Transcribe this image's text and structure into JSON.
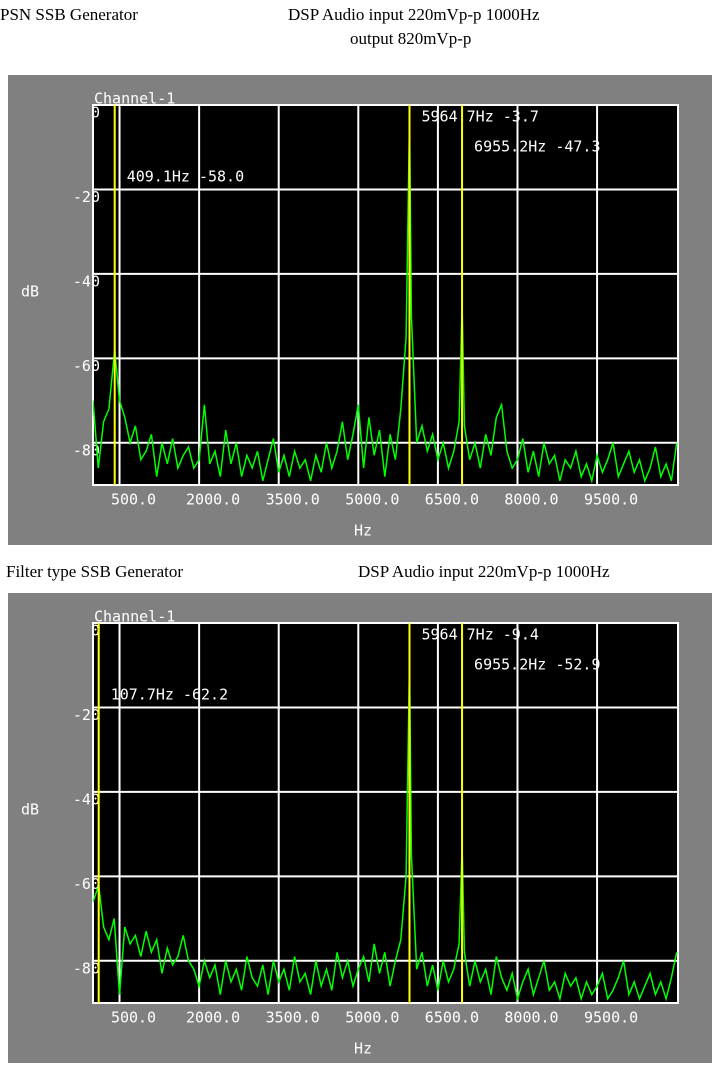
{
  "chart_data": [
    {
      "type": "line",
      "title": "PSN SSB Generator",
      "notes": [
        "DSP Audio input   220mVp-p  1000Hz",
        "output    820mVp-p"
      ],
      "channel": "Channel-1",
      "xlabel": "Hz",
      "ylabel": "dB",
      "color": "#00ff00",
      "grid": true,
      "xlim": [
        0,
        11025
      ],
      "ylim": [
        -90,
        0
      ],
      "xticks": [
        {
          "value": 500,
          "label": "500.0"
        },
        {
          "value": 2000,
          "label": "2000.0"
        },
        {
          "value": 3500,
          "label": "3500.0"
        },
        {
          "value": 5000,
          "label": "5000.0"
        },
        {
          "value": 6500,
          "label": "6500.0"
        },
        {
          "value": 8000,
          "label": "8000.0"
        },
        {
          "value": 9500,
          "label": "9500.0"
        }
      ],
      "yticks": [
        0,
        -20,
        -40,
        -60,
        -80
      ],
      "markers": [
        {
          "x": 409.1,
          "label": "409.1Hz -58.0"
        },
        {
          "x": 5964.7,
          "label": "5964.7Hz -3.7"
        },
        {
          "x": 6955.2,
          "label": "6955.2Hz -47.3"
        }
      ],
      "x": [
        0,
        100,
        200,
        300,
        409.1,
        500,
        600,
        700,
        800,
        900,
        1000,
        1100,
        1200,
        1300,
        1400,
        1500,
        1600,
        1700,
        1800,
        1900,
        2000,
        2100,
        2200,
        2300,
        2400,
        2500,
        2600,
        2700,
        2800,
        2900,
        3000,
        3100,
        3200,
        3300,
        3400,
        3500,
        3600,
        3700,
        3800,
        3900,
        4000,
        4100,
        4200,
        4300,
        4400,
        4500,
        4600,
        4700,
        4800,
        4900,
        5000,
        5100,
        5200,
        5300,
        5400,
        5500,
        5600,
        5700,
        5800,
        5900,
        5964.7,
        6000,
        6100,
        6200,
        6300,
        6400,
        6500,
        6600,
        6700,
        6800,
        6900,
        6955.2,
        7000,
        7100,
        7200,
        7300,
        7400,
        7500,
        7600,
        7700,
        7800,
        7900,
        8000,
        8100,
        8200,
        8300,
        8400,
        8500,
        8600,
        8700,
        8800,
        8900,
        9000,
        9100,
        9200,
        9300,
        9400,
        9500,
        9600,
        9700,
        9800,
        9900,
        10000,
        10100,
        10200,
        10300,
        10400,
        10500,
        10600,
        10700,
        10800,
        10900,
        11000
      ],
      "values": [
        -70,
        -86,
        -75,
        -72,
        -58.0,
        -70,
        -74,
        -80,
        -76,
        -84,
        -82,
        -78,
        -88,
        -80,
        -85,
        -79,
        -86,
        -83,
        -81,
        -86,
        -84,
        -71,
        -85,
        -82,
        -88,
        -77,
        -85,
        -80,
        -88,
        -83,
        -86,
        -82,
        -89,
        -84,
        -79,
        -87,
        -83,
        -88,
        -82,
        -86,
        -84,
        -89,
        -83,
        -87,
        -80,
        -86,
        -82,
        -75,
        -84,
        -78,
        -71,
        -86,
        -74,
        -83,
        -77,
        -88,
        -78,
        -84,
        -72,
        -55,
        -3.7,
        -50,
        -80,
        -76,
        -82,
        -78,
        -84,
        -80,
        -86,
        -82,
        -75,
        -47.3,
        -76,
        -84,
        -80,
        -86,
        -78,
        -83,
        -74,
        -71,
        -82,
        -86,
        -84,
        -79,
        -87,
        -82,
        -88,
        -80,
        -85,
        -83,
        -89,
        -84,
        -86,
        -82,
        -88,
        -85,
        -89,
        -83,
        -87,
        -84,
        -80,
        -88,
        -85,
        -82,
        -87,
        -84,
        -89,
        -86,
        -81,
        -88,
        -85,
        -89,
        -80
      ]
    },
    {
      "type": "line",
      "title": "Filter  type  SSB Generator",
      "notes": [
        "DSP Audio input   220mVp-p  1000Hz"
      ],
      "channel": "Channel-1",
      "xlabel": "Hz",
      "ylabel": "dB",
      "color": "#00ff00",
      "grid": true,
      "xlim": [
        0,
        11025
      ],
      "ylim": [
        -90,
        0
      ],
      "xticks": [
        {
          "value": 500,
          "label": "500.0"
        },
        {
          "value": 2000,
          "label": "2000.0"
        },
        {
          "value": 3500,
          "label": "3500.0"
        },
        {
          "value": 5000,
          "label": "5000.0"
        },
        {
          "value": 6500,
          "label": "6500.0"
        },
        {
          "value": 8000,
          "label": "8000.0"
        },
        {
          "value": 9500,
          "label": "9500.0"
        }
      ],
      "yticks": [
        0,
        -20,
        -40,
        -60,
        -80
      ],
      "markers": [
        {
          "x": 107.7,
          "label": "107.7Hz -62.2"
        },
        {
          "x": 5964.7,
          "label": "5964.7Hz -9.4"
        },
        {
          "x": 6955.2,
          "label": "6955.2Hz -52.9"
        }
      ],
      "x": [
        0,
        107.7,
        200,
        300,
        400,
        500,
        600,
        700,
        800,
        900,
        1000,
        1100,
        1200,
        1300,
        1400,
        1500,
        1600,
        1700,
        1800,
        1900,
        2000,
        2100,
        2200,
        2300,
        2400,
        2500,
        2600,
        2700,
        2800,
        2900,
        3000,
        3100,
        3200,
        3300,
        3400,
        3500,
        3600,
        3700,
        3800,
        3900,
        4000,
        4100,
        4200,
        4300,
        4400,
        4500,
        4600,
        4700,
        4800,
        4900,
        5000,
        5100,
        5200,
        5300,
        5400,
        5500,
        5600,
        5700,
        5800,
        5900,
        5964.7,
        6000,
        6100,
        6200,
        6300,
        6400,
        6500,
        6600,
        6700,
        6800,
        6900,
        6955.2,
        7000,
        7100,
        7200,
        7300,
        7400,
        7500,
        7600,
        7700,
        7800,
        7900,
        8000,
        8100,
        8200,
        8300,
        8400,
        8500,
        8600,
        8700,
        8800,
        8900,
        9000,
        9100,
        9200,
        9300,
        9400,
        9500,
        9600,
        9700,
        9800,
        9900,
        10000,
        10100,
        10200,
        10300,
        10400,
        10500,
        10600,
        10700,
        10800,
        10900,
        11000
      ],
      "values": [
        -66,
        -62.2,
        -72,
        -75,
        -70,
        -88,
        -72,
        -76,
        -74,
        -79,
        -73,
        -78,
        -75,
        -83,
        -77,
        -81,
        -79,
        -74,
        -80,
        -82,
        -86,
        -80,
        -84,
        -81,
        -88,
        -80,
        -85,
        -82,
        -87,
        -79,
        -84,
        -86,
        -81,
        -88,
        -80,
        -85,
        -82,
        -87,
        -79,
        -85,
        -83,
        -88,
        -80,
        -86,
        -82,
        -87,
        -78,
        -84,
        -80,
        -86,
        -82,
        -79,
        -85,
        -76,
        -83,
        -78,
        -86,
        -80,
        -75,
        -60,
        -9.4,
        -55,
        -82,
        -78,
        -86,
        -81,
        -87,
        -80,
        -85,
        -82,
        -76,
        -52.9,
        -78,
        -86,
        -80,
        -85,
        -82,
        -88,
        -79,
        -84,
        -87,
        -83,
        -89,
        -85,
        -82,
        -88,
        -84,
        -80,
        -87,
        -85,
        -89,
        -83,
        -86,
        -84,
        -89,
        -85,
        -88,
        -86,
        -83,
        -89,
        -87,
        -84,
        -80,
        -88,
        -85,
        -89,
        -86,
        -83,
        -88,
        -85,
        -89,
        -84,
        -78
      ]
    }
  ]
}
